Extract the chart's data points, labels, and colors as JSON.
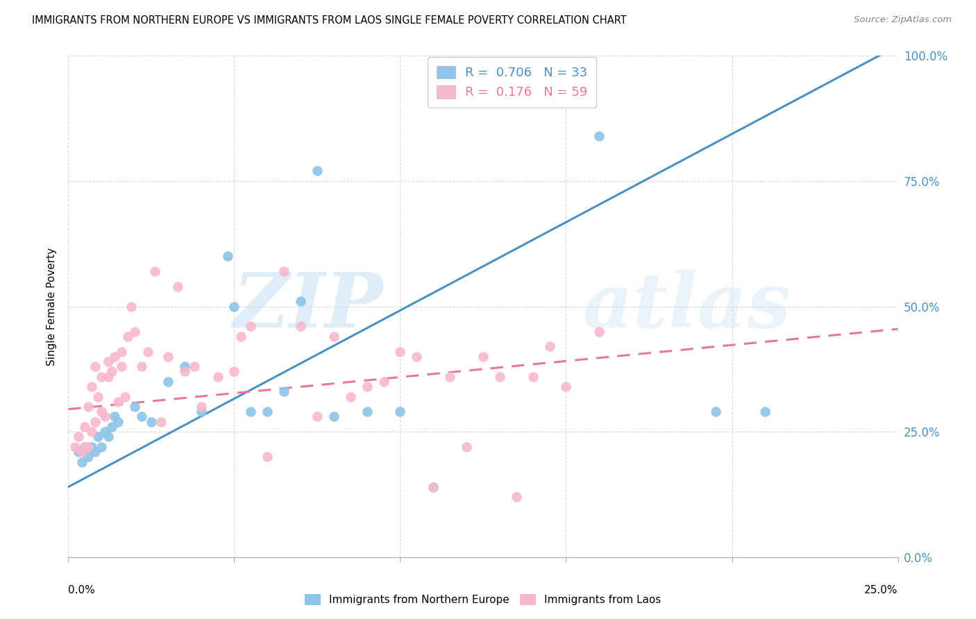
{
  "title": "IMMIGRANTS FROM NORTHERN EUROPE VS IMMIGRANTS FROM LAOS SINGLE FEMALE POVERTY CORRELATION CHART",
  "source": "Source: ZipAtlas.com",
  "ylabel": "Single Female Poverty",
  "legend_label1": "Immigrants from Northern Europe",
  "legend_label2": "Immigrants from Laos",
  "R1": 0.706,
  "N1": 33,
  "R2": 0.176,
  "N2": 59,
  "blue_color": "#8ec4e8",
  "pink_color": "#f7b8cb",
  "blue_line_color": "#4a90c4",
  "pink_line_color": "#e8789a",
  "watermark_zip": "ZIP",
  "watermark_atlas": "atlas",
  "xlim": [
    0.0,
    0.25
  ],
  "ylim": [
    0.0,
    1.0
  ],
  "blue_line_x0": 0.0,
  "blue_line_y0": 0.14,
  "blue_line_x1": 0.25,
  "blue_line_y1": 1.02,
  "pink_line_x0": 0.0,
  "pink_line_y0": 0.295,
  "pink_line_x1": 0.25,
  "pink_line_y1": 0.455,
  "blue_scatter_x": [
    0.003,
    0.004,
    0.005,
    0.006,
    0.007,
    0.008,
    0.009,
    0.01,
    0.011,
    0.012,
    0.013,
    0.014,
    0.015,
    0.02,
    0.022,
    0.025,
    0.03,
    0.035,
    0.04,
    0.048,
    0.05,
    0.055,
    0.06,
    0.065,
    0.07,
    0.075,
    0.08,
    0.09,
    0.1,
    0.11,
    0.16,
    0.195,
    0.21
  ],
  "blue_scatter_y": [
    0.21,
    0.19,
    0.22,
    0.2,
    0.22,
    0.21,
    0.24,
    0.22,
    0.25,
    0.24,
    0.26,
    0.28,
    0.27,
    0.3,
    0.28,
    0.27,
    0.35,
    0.38,
    0.29,
    0.6,
    0.5,
    0.29,
    0.29,
    0.33,
    0.51,
    0.77,
    0.28,
    0.29,
    0.29,
    0.14,
    0.84,
    0.29,
    0.29
  ],
  "pink_scatter_x": [
    0.002,
    0.003,
    0.004,
    0.005,
    0.005,
    0.006,
    0.006,
    0.007,
    0.007,
    0.008,
    0.008,
    0.009,
    0.01,
    0.01,
    0.011,
    0.012,
    0.012,
    0.013,
    0.014,
    0.015,
    0.016,
    0.016,
    0.017,
    0.018,
    0.019,
    0.02,
    0.022,
    0.024,
    0.026,
    0.028,
    0.03,
    0.033,
    0.035,
    0.038,
    0.04,
    0.045,
    0.05,
    0.052,
    0.055,
    0.06,
    0.065,
    0.07,
    0.075,
    0.08,
    0.085,
    0.09,
    0.095,
    0.1,
    0.105,
    0.11,
    0.115,
    0.12,
    0.125,
    0.13,
    0.135,
    0.14,
    0.145,
    0.15,
    0.16
  ],
  "pink_scatter_y": [
    0.22,
    0.24,
    0.21,
    0.22,
    0.26,
    0.22,
    0.3,
    0.25,
    0.34,
    0.27,
    0.38,
    0.32,
    0.29,
    0.36,
    0.28,
    0.36,
    0.39,
    0.37,
    0.4,
    0.31,
    0.38,
    0.41,
    0.32,
    0.44,
    0.5,
    0.45,
    0.38,
    0.41,
    0.57,
    0.27,
    0.4,
    0.54,
    0.37,
    0.38,
    0.3,
    0.36,
    0.37,
    0.44,
    0.46,
    0.2,
    0.57,
    0.46,
    0.28,
    0.44,
    0.32,
    0.34,
    0.35,
    0.41,
    0.4,
    0.14,
    0.36,
    0.22,
    0.4,
    0.36,
    0.12,
    0.36,
    0.42,
    0.34,
    0.45
  ],
  "y_ticks": [
    0.0,
    0.25,
    0.5,
    0.75,
    1.0
  ],
  "x_ticks": [
    0.0,
    0.05,
    0.1,
    0.15,
    0.2,
    0.25
  ]
}
